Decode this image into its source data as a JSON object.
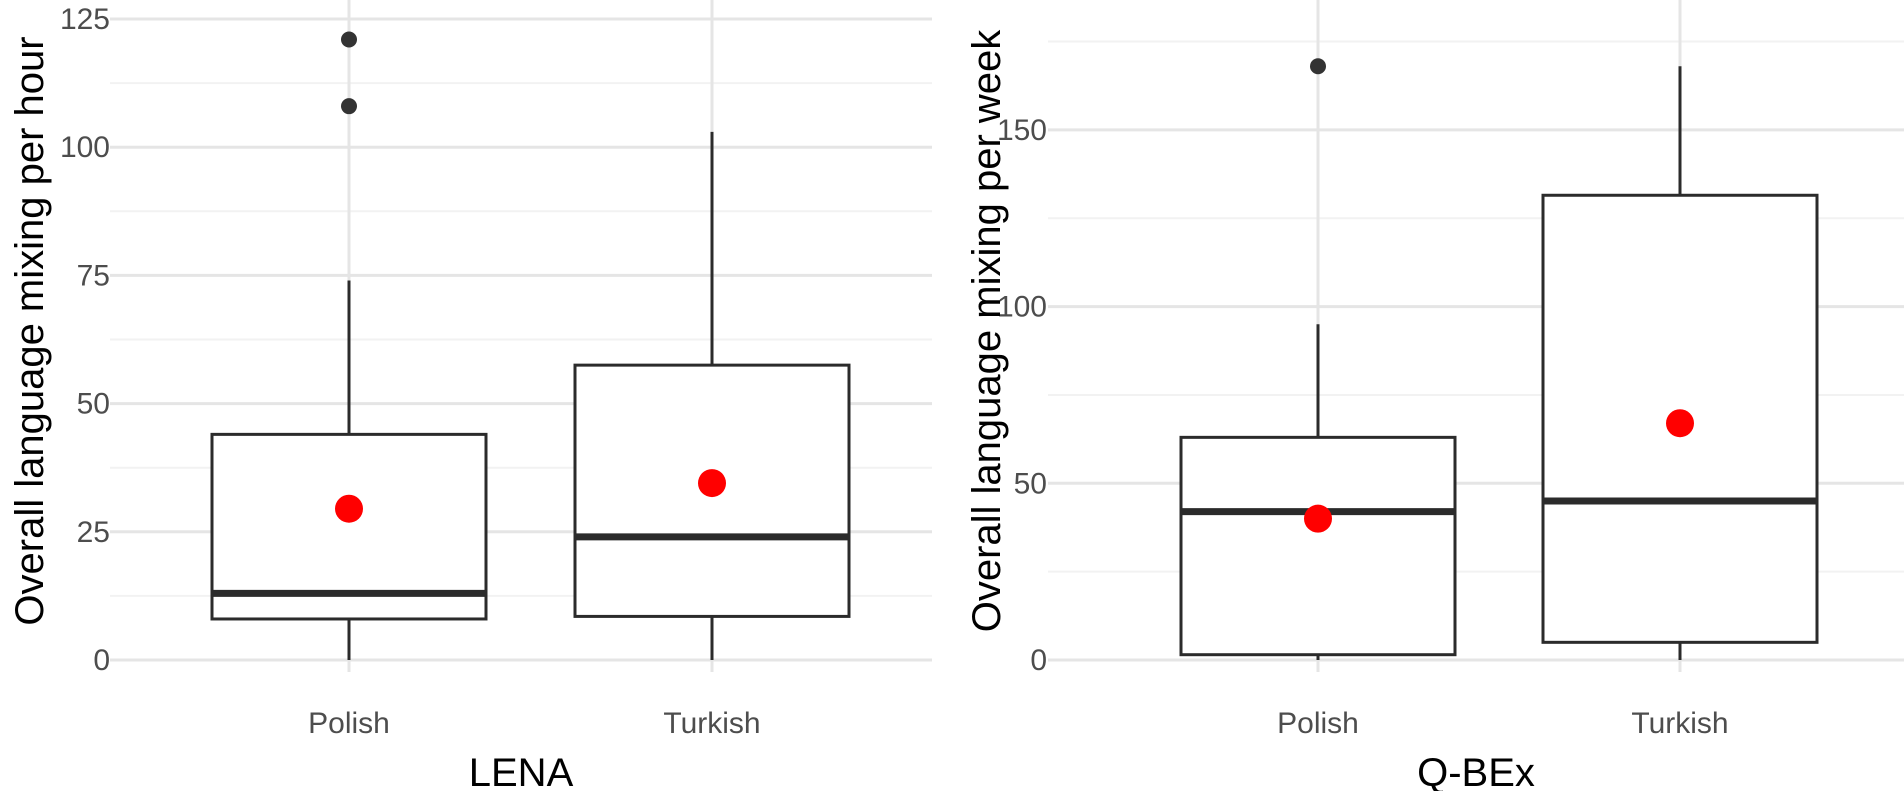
{
  "chart_data": [
    {
      "type": "boxplot",
      "xlabel": "LENA",
      "ylabel": "Overall language mixing per hour",
      "ylim": [
        0,
        125
      ],
      "yticks": [
        0,
        25,
        50,
        75,
        100,
        125
      ],
      "grid": true,
      "categories": [
        "Polish",
        "Turkish"
      ],
      "boxes": [
        {
          "category": "Polish",
          "whisker_low": 0,
          "q1": 8,
          "median": 13,
          "q3": 44,
          "whisker_high": 74,
          "mean": 29.5,
          "outliers": [
            108,
            121
          ]
        },
        {
          "category": "Turkish",
          "whisker_low": 0,
          "q1": 8.5,
          "median": 24,
          "q3": 57.5,
          "whisker_high": 103,
          "mean": 34.5,
          "outliers": []
        }
      ]
    },
    {
      "type": "boxplot",
      "xlabel": "Q-BEx",
      "ylabel": "Overall language mixing per week",
      "ylim": [
        0,
        176
      ],
      "yticks": [
        0,
        50,
        100,
        150
      ],
      "grid": true,
      "categories": [
        "Polish",
        "Turkish"
      ],
      "boxes": [
        {
          "category": "Polish",
          "whisker_low": 0,
          "q1": 1.5,
          "median": 42,
          "q3": 63,
          "whisker_high": 95,
          "mean": 40,
          "outliers": [
            168
          ]
        },
        {
          "category": "Turkish",
          "whisker_low": 0,
          "q1": 5,
          "median": 45,
          "q3": 131.5,
          "whisker_high": 168,
          "mean": 67,
          "outliers": []
        }
      ]
    }
  ],
  "colors": {
    "box_stroke": "#2b2b2b",
    "outlier": "#333333",
    "mean_point": "#ff0000",
    "grid_major": "#e5e5e5",
    "grid_minor": "#f2f2f2",
    "tick_text": "#4d4d4d"
  }
}
